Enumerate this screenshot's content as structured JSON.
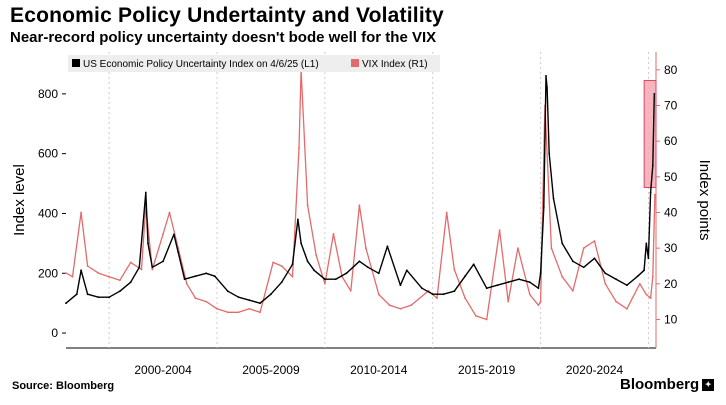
{
  "header": {
    "title": "Economic Policy Undertainty and Volatility",
    "subtitle": "Near-record policy uncertainty doesn't bode well for the VIX"
  },
  "footer": {
    "source": "Source: Bloomberg",
    "brand": "Bloomberg"
  },
  "colors": {
    "epu": "#000000",
    "vix": "#e46b6b",
    "highlight_fill": "#f4a8b4",
    "highlight_stroke": "#d9475f",
    "grid": "#cccccc",
    "right_axis": "#e46b6b"
  },
  "chart_data": {
    "type": "line",
    "title": "Economic Policy Undertainty and Volatility",
    "subtitle": "Near-record policy uncertainty doesn't bode well for the VIX",
    "x_range": [
      1998.0,
      2025.35
    ],
    "x_categories": [
      "2000-2004",
      "2005-2009",
      "2010-2014",
      "2015-2019",
      "2020-2024"
    ],
    "ylabel": "Index level",
    "y2label": "Index points",
    "ylim": [
      -50,
      940
    ],
    "y_ticks": [
      0,
      200,
      400,
      600,
      800
    ],
    "y2lim": [
      2,
      85
    ],
    "y2_ticks": [
      10,
      20,
      30,
      40,
      50,
      60,
      70,
      80
    ],
    "grid": "vertical dashed at period boundaries",
    "legend": {
      "position": "top-left",
      "entries": [
        "US Economic Policy Uncertainty Index on 4/6/25 (L1)",
        "VIX Index (R1)"
      ]
    },
    "highlight": {
      "x_range": [
        2024.8,
        2025.35
      ],
      "y2_range": [
        47,
        77
      ]
    },
    "series": [
      {
        "name": "US Economic Policy Uncertainty Index on 4/6/25 (L1)",
        "axis": "left",
        "x": [
          1998.0,
          1998.5,
          1998.7,
          1999.0,
          1999.5,
          2000.0,
          2000.5,
          2001.0,
          2001.4,
          2001.7,
          2001.8,
          2002.0,
          2002.5,
          2003.0,
          2003.2,
          2003.5,
          2004.0,
          2004.5,
          2004.9,
          2005.5,
          2006.0,
          2006.5,
          2007.0,
          2007.5,
          2008.0,
          2008.5,
          2008.75,
          2008.9,
          2009.2,
          2009.5,
          2010.0,
          2010.5,
          2011.0,
          2011.6,
          2012.0,
          2012.5,
          2012.9,
          2013.5,
          2013.8,
          2014.5,
          2015.0,
          2015.5,
          2016.0,
          2016.5,
          2016.9,
          2017.5,
          2018.0,
          2018.5,
          2019.0,
          2019.5,
          2019.9,
          2020.0,
          2020.15,
          2020.25,
          2020.3,
          2020.4,
          2020.6,
          2021.0,
          2021.5,
          2022.0,
          2022.5,
          2023.0,
          2023.5,
          2024.0,
          2024.5,
          2024.8,
          2024.9,
          2025.0,
          2025.1,
          2025.2,
          2025.27
        ],
        "values": [
          100,
          130,
          210,
          130,
          120,
          120,
          140,
          170,
          220,
          470,
          300,
          220,
          240,
          330,
          270,
          180,
          190,
          200,
          190,
          140,
          120,
          110,
          100,
          130,
          170,
          230,
          380,
          300,
          240,
          210,
          180,
          180,
          200,
          240,
          220,
          200,
          290,
          160,
          210,
          150,
          130,
          130,
          140,
          190,
          230,
          150,
          160,
          170,
          180,
          170,
          150,
          200,
          420,
          860,
          820,
          600,
          450,
          300,
          240,
          220,
          250,
          200,
          180,
          160,
          190,
          210,
          300,
          250,
          470,
          560,
          800
        ]
      },
      {
        "name": "VIX Index (R1)",
        "axis": "right",
        "x": [
          1998.0,
          1998.3,
          1998.7,
          1999.0,
          1999.5,
          2000.0,
          2000.5,
          2001.0,
          2001.5,
          2001.7,
          2002.0,
          2002.5,
          2002.8,
          2003.2,
          2003.6,
          2004.0,
          2004.5,
          2005.0,
          2005.5,
          2006.0,
          2006.5,
          2007.0,
          2007.6,
          2008.0,
          2008.5,
          2008.8,
          2008.9,
          2009.2,
          2009.6,
          2010.0,
          2010.4,
          2010.8,
          2011.2,
          2011.6,
          2011.9,
          2012.5,
          2013.0,
          2013.5,
          2014.0,
          2014.8,
          2015.2,
          2015.65,
          2016.0,
          2016.5,
          2017.0,
          2017.5,
          2018.1,
          2018.5,
          2018.95,
          2019.5,
          2019.9,
          2020.0,
          2020.2,
          2020.5,
          2021.0,
          2021.5,
          2022.0,
          2022.5,
          2023.0,
          2023.5,
          2024.0,
          2024.6,
          2024.9,
          2025.1,
          2025.2,
          2025.3
        ],
        "values": [
          23,
          22,
          40,
          25,
          23,
          22,
          21,
          26,
          24,
          42,
          24,
          34,
          40,
          30,
          20,
          16,
          15,
          13,
          12,
          12,
          13,
          12,
          26,
          25,
          22,
          58,
          80,
          42,
          28,
          20,
          34,
          22,
          18,
          42,
          30,
          17,
          14,
          13,
          14,
          18,
          16,
          40,
          24,
          16,
          11,
          10,
          35,
          15,
          30,
          17,
          14,
          15,
          70,
          30,
          22,
          18,
          30,
          32,
          20,
          15,
          13,
          20,
          17,
          16,
          22,
          45
        ]
      }
    ],
    "period_boundaries": [
      2000.0,
      2005.0,
      2010.0,
      2015.0,
      2020.0,
      2025.0
    ]
  }
}
